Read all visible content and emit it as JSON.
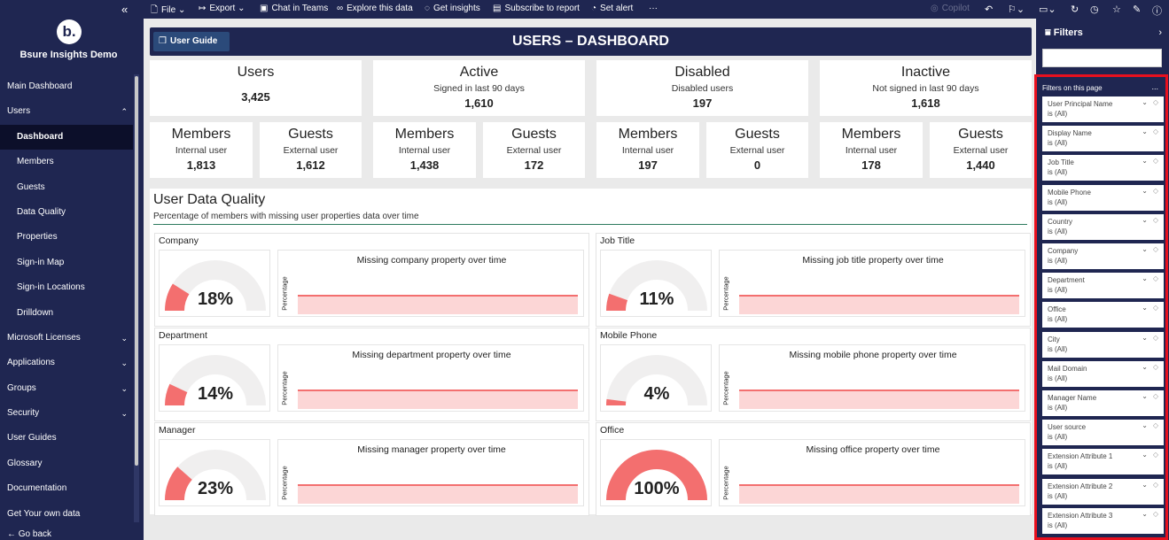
{
  "brand": {
    "logo": "b.",
    "name": "Bsure Insights Demo",
    "collapse_icon": "double-chevron-left"
  },
  "nav": [
    {
      "label": "Main Dashboard"
    },
    {
      "label": "Users",
      "chevron": "^"
    },
    {
      "label": "Dashboard",
      "sub": true,
      "active": true
    },
    {
      "label": "Members",
      "sub": true
    },
    {
      "label": "Guests",
      "sub": true
    },
    {
      "label": "Data Quality",
      "sub": true
    },
    {
      "label": "Properties",
      "sub": true
    },
    {
      "label": "Sign-in Map",
      "sub": true
    },
    {
      "label": "Sign-in Locations",
      "sub": true
    },
    {
      "label": "Drilldown",
      "sub": true
    },
    {
      "label": "Microsoft Licenses",
      "chevron": "v"
    },
    {
      "label": "Applications",
      "chevron": "v"
    },
    {
      "label": "Groups",
      "chevron": "v"
    },
    {
      "label": "Security",
      "chevron": "v"
    },
    {
      "label": "User Guides"
    },
    {
      "label": "Glossary"
    },
    {
      "label": "Documentation"
    },
    {
      "label": "Get Your own data"
    }
  ],
  "go_back": "Go back",
  "toolbar": {
    "file": "File",
    "export": "Export",
    "chat": "Chat in Teams",
    "explore": "Explore this data",
    "insights": "Get insights",
    "subscribe": "Subscribe to report",
    "alert": "Set alert",
    "more": "···",
    "copilot": "Copilot"
  },
  "header": {
    "user_guide": "User Guide",
    "title": "USERS – DASHBOARD"
  },
  "kpis": [
    {
      "title": "Users",
      "subtitle": "",
      "value": "3,425"
    },
    {
      "title": "Active",
      "subtitle": "Signed in last 90 days",
      "value": "1,610"
    },
    {
      "title": "Disabled",
      "subtitle": "Disabled users",
      "value": "197"
    },
    {
      "title": "Inactive",
      "subtitle": "Not signed in last 90 days",
      "value": "1,618"
    }
  ],
  "breakdowns": [
    {
      "title": "Members",
      "subtitle": "Internal user",
      "value": "1,813"
    },
    {
      "title": "Guests",
      "subtitle": "External user",
      "value": "1,612"
    },
    {
      "title": "Members",
      "subtitle": "Internal user",
      "value": "1,438"
    },
    {
      "title": "Guests",
      "subtitle": "External user",
      "value": "172"
    },
    {
      "title": "Members",
      "subtitle": "Internal user",
      "value": "197"
    },
    {
      "title": "Guests",
      "subtitle": "External user",
      "value": "0"
    },
    {
      "title": "Members",
      "subtitle": "Internal user",
      "value": "178"
    },
    {
      "title": "Guests",
      "subtitle": "External user",
      "value": "1,440"
    }
  ],
  "data_quality": {
    "title": "User Data Quality",
    "subtitle": "Percentage of members with missing user properties data over time",
    "y_label": "Percentage",
    "metrics": [
      {
        "name": "Company",
        "pct_label": "18%",
        "pct": 0.18,
        "chart_title": "Missing company property over time"
      },
      {
        "name": "Job Title",
        "pct_label": "11%",
        "pct": 0.11,
        "chart_title": "Missing job title property over time"
      },
      {
        "name": "Department",
        "pct_label": "14%",
        "pct": 0.14,
        "chart_title": "Missing department property over time"
      },
      {
        "name": "Mobile Phone",
        "pct_label": "4%",
        "pct": 0.04,
        "chart_title": "Missing mobile phone property over time"
      },
      {
        "name": "Manager",
        "pct_label": "23%",
        "pct": 0.23,
        "chart_title": "Missing manager property over time"
      },
      {
        "name": "Office",
        "pct_label": "100%",
        "pct": 1.0,
        "chart_title": "Missing office property over time"
      }
    ]
  },
  "filters": {
    "title": "Filters",
    "on_page": "Filters on this page",
    "more": "...",
    "items": [
      {
        "name": "User Principal Name",
        "value": "is (All)"
      },
      {
        "name": "Display Name",
        "value": "is (All)"
      },
      {
        "name": "Job Title",
        "value": "is (All)"
      },
      {
        "name": "Mobile Phone",
        "value": "is (All)"
      },
      {
        "name": "Country",
        "value": "is (All)"
      },
      {
        "name": "Company",
        "value": "is (All)"
      },
      {
        "name": "Department",
        "value": "is (All)"
      },
      {
        "name": "Office",
        "value": "is (All)"
      },
      {
        "name": "City",
        "value": "is (All)"
      },
      {
        "name": "Mail Domain",
        "value": "is (All)"
      },
      {
        "name": "Manager Name",
        "value": "is (All)"
      },
      {
        "name": "User source",
        "value": "is (All)"
      },
      {
        "name": "Extension Attribute 1",
        "value": "is (All)"
      },
      {
        "name": "Extension Attribute 2",
        "value": "is (All)"
      },
      {
        "name": "Extension Attribute 3",
        "value": "is (All)"
      }
    ]
  },
  "colors": {
    "navy": "#1f2651",
    "gauge_fill": "#f36f6f",
    "gauge_track": "#f0efef",
    "highlight": "#e8101e"
  }
}
